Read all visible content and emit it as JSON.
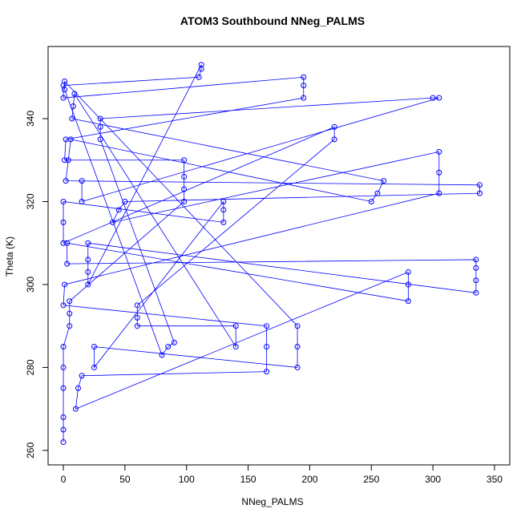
{
  "chart_data": {
    "type": "scatter",
    "title": "ATOM3 Southbound NNeg_PALMS",
    "x_label": "NNeg_PALMS",
    "y_label": "Theta (K)",
    "xlim": [
      -12.4,
      362.4
    ],
    "ylim": [
      256.5,
      357.4
    ],
    "xticks": [
      0,
      50,
      100,
      150,
      200,
      250,
      300,
      350
    ],
    "yticks": [
      260,
      280,
      300,
      320,
      340
    ],
    "x": [
      0,
      0,
      0,
      0,
      0,
      0,
      5,
      5,
      5,
      98,
      98,
      98,
      98,
      1,
      2,
      195,
      195,
      195,
      0,
      0,
      110,
      112,
      112,
      20,
      20,
      20,
      20,
      335,
      335,
      335,
      335,
      3,
      3,
      280,
      280,
      280,
      10,
      12,
      15,
      165,
      165,
      165,
      0,
      1,
      305,
      305,
      305,
      40,
      45,
      50,
      338,
      338,
      2,
      4,
      6,
      250,
      255,
      260,
      7,
      8,
      9,
      140,
      140,
      60,
      60,
      60,
      220,
      220,
      0,
      0,
      0,
      130,
      130,
      130,
      25,
      25,
      190,
      190,
      190,
      1,
      1,
      80,
      85,
      90,
      30,
      30,
      30,
      300,
      305,
      15,
      15
    ],
    "series": [
      {
        "name": "Theta",
        "color": "#0000ff",
        "line": true,
        "values": [
          262,
          265,
          268,
          275,
          280,
          285,
          290,
          293,
          296,
          320,
          323,
          326,
          330,
          330,
          335,
          345,
          348,
          350,
          345,
          348,
          350,
          352,
          353,
          300,
          303,
          306,
          310,
          298,
          301,
          304,
          306,
          305,
          310,
          296,
          300,
          303,
          270,
          275,
          278,
          279,
          285,
          290,
          295,
          300,
          322,
          327,
          332,
          315,
          318,
          320,
          322,
          324,
          325,
          330,
          335,
          320,
          322,
          325,
          340,
          343,
          346,
          285,
          290,
          290,
          292,
          295,
          335,
          338,
          310,
          315,
          320,
          315,
          318,
          320,
          280,
          285,
          280,
          285,
          290,
          349,
          347,
          283,
          285,
          286,
          335,
          338,
          340,
          345,
          345,
          320,
          325
        ]
      }
    ]
  }
}
